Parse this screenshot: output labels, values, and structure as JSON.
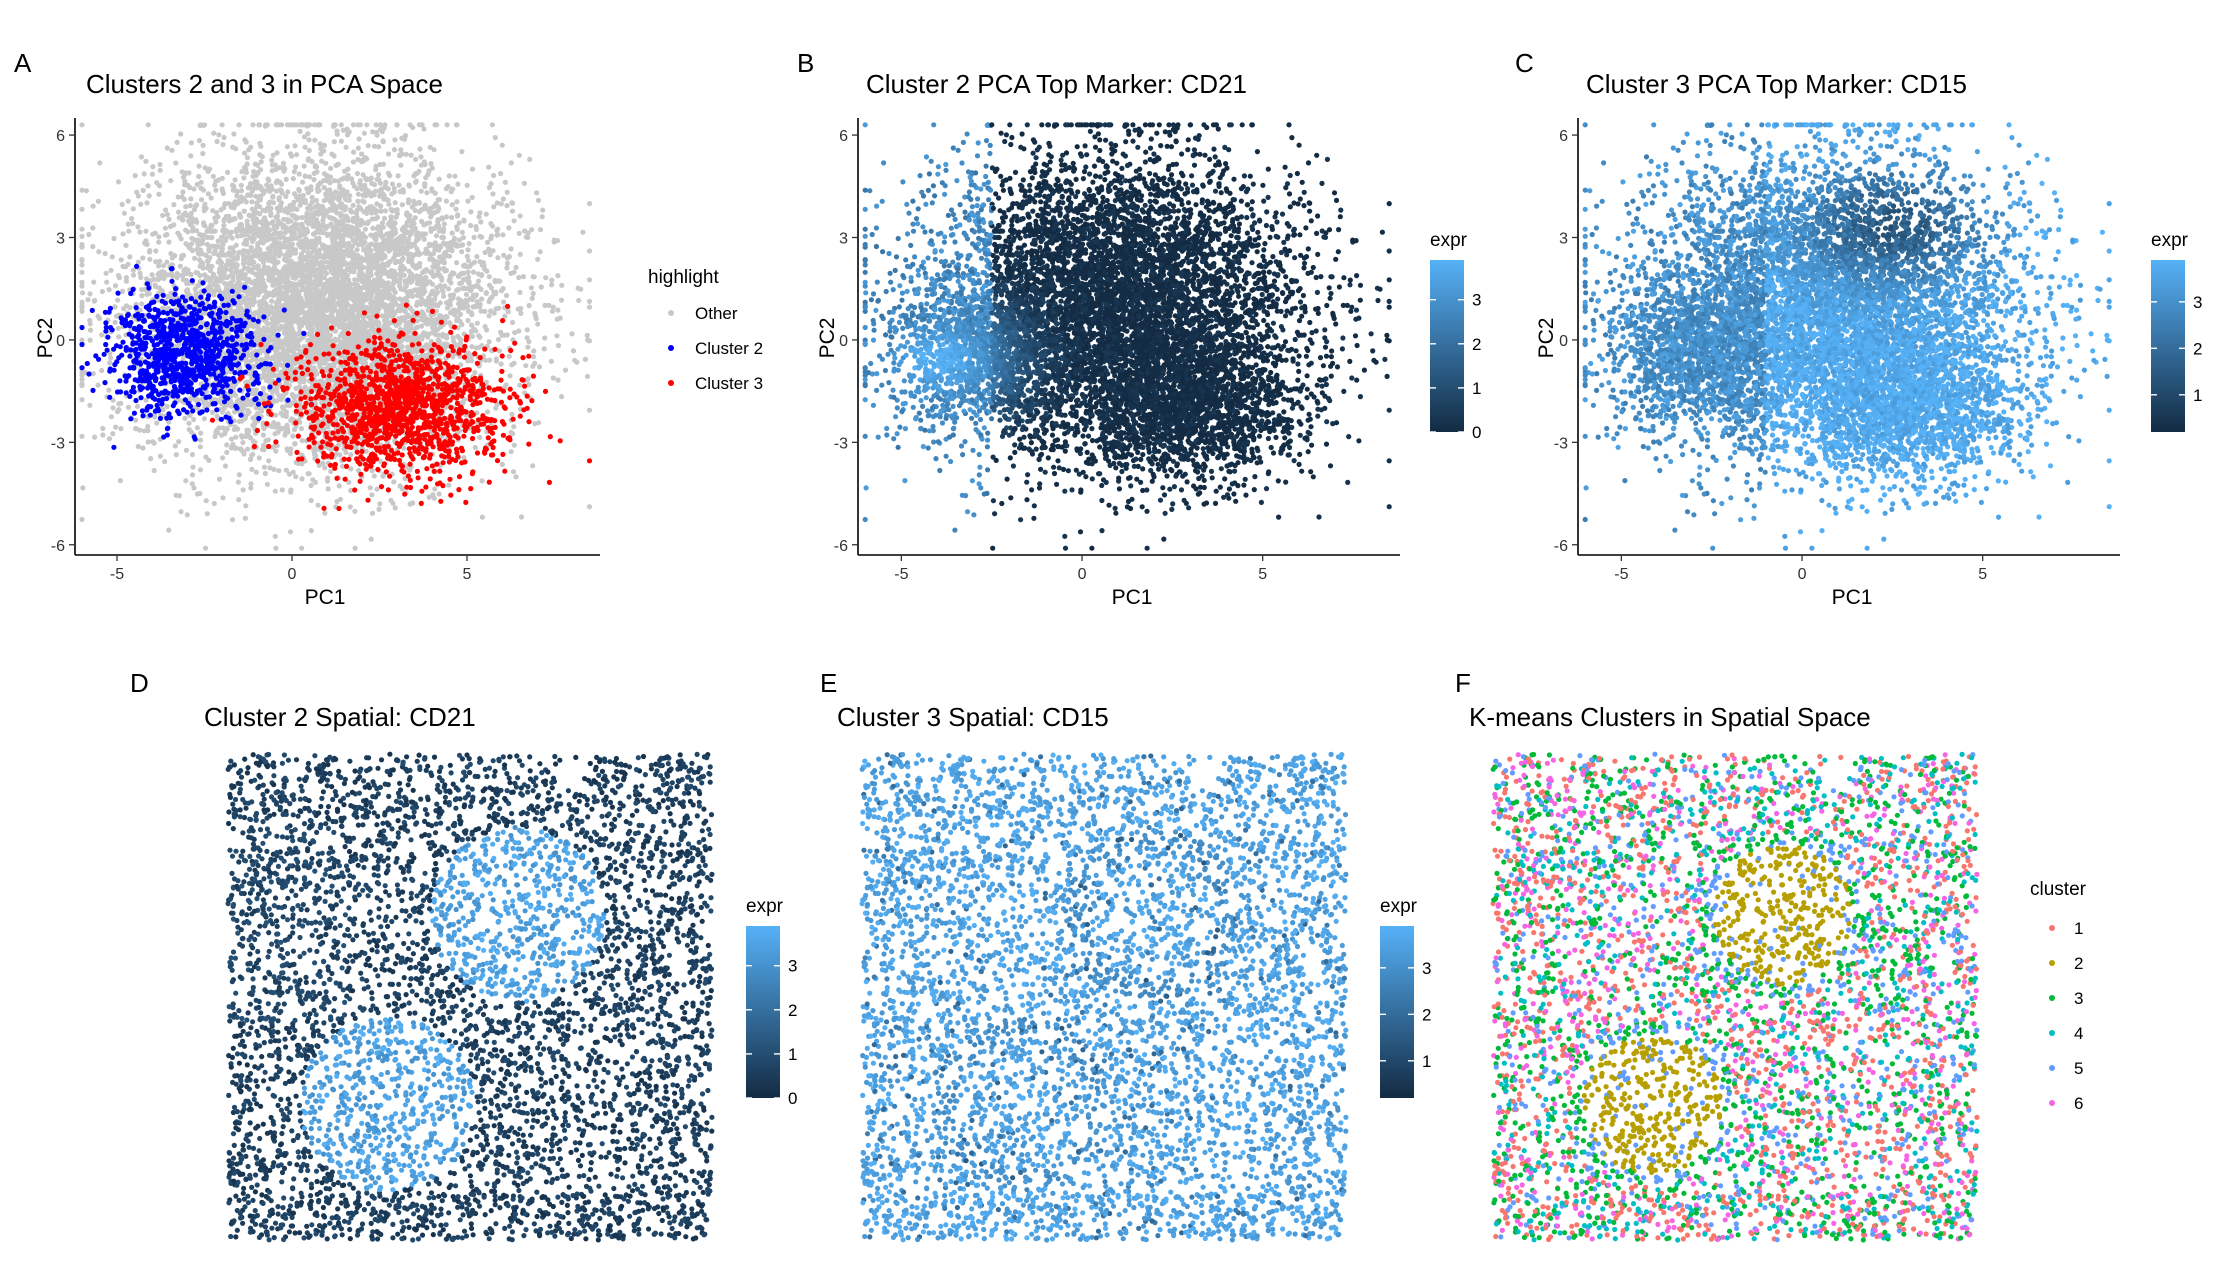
{
  "chart_data": [
    {
      "panel": "A",
      "type": "scatter",
      "title": "Clusters 2 and 3 in PCA Space",
      "xlabel": "PC1",
      "ylabel": "PC2",
      "xlim": [
        -6.2,
        8.8
      ],
      "ylim": [
        -6.3,
        6.5
      ],
      "xticks": [
        -5,
        0,
        5
      ],
      "yticks": [
        -6,
        -3,
        0,
        3,
        6
      ],
      "grid": false,
      "legend": {
        "title": "highlight",
        "position": "right",
        "entries": [
          {
            "label": "Other",
            "color": "#C8C8C8"
          },
          {
            "label": "Cluster 2",
            "color": "#0000FF"
          },
          {
            "label": "Cluster 3",
            "color": "#FF0000"
          }
        ]
      },
      "groups": [
        {
          "name": "Other",
          "color": "#C8C8C8",
          "n": 6800,
          "center": [
            0.8,
            0.9
          ],
          "spread": [
            2.6,
            2.2
          ]
        },
        {
          "name": "Cluster 2",
          "color": "#0000FF",
          "n": 900,
          "center": [
            -3.1,
            -0.4
          ],
          "spread": [
            1.1,
            0.85
          ]
        },
        {
          "name": "Cluster 3",
          "color": "#FF0000",
          "n": 1300,
          "center": [
            3.0,
            -2.0
          ],
          "spread": [
            1.5,
            1.0
          ]
        }
      ]
    },
    {
      "panel": "B",
      "type": "scatter",
      "title": "Cluster 2 PCA Top Marker: CD21",
      "xlabel": "PC1",
      "ylabel": "PC2",
      "xlim": [
        -6.2,
        8.8
      ],
      "ylim": [
        -6.3,
        6.5
      ],
      "xticks": [
        -5,
        0,
        5
      ],
      "yticks": [
        -6,
        -3,
        0,
        3,
        6
      ],
      "grid": false,
      "colorbar": {
        "title": "expr",
        "min": 0,
        "max": 3.9,
        "ticks": [
          0,
          1,
          2,
          3
        ],
        "low": "#132B43",
        "high": "#56B1F7"
      },
      "high_expr_center": [
        -4.0,
        -0.6
      ]
    },
    {
      "panel": "C",
      "type": "scatter",
      "title": "Cluster 3 PCA Top Marker: CD15",
      "xlabel": "PC1",
      "ylabel": "PC2",
      "xlim": [
        -6.2,
        8.8
      ],
      "ylim": [
        -6.3,
        6.5
      ],
      "xticks": [
        -5,
        0,
        5
      ],
      "yticks": [
        -6,
        -3,
        0,
        3,
        6
      ],
      "grid": false,
      "colorbar": {
        "title": "expr",
        "min": 0.2,
        "max": 3.9,
        "ticks": [
          1,
          2,
          3
        ],
        "low": "#132B43",
        "high": "#56B1F7"
      },
      "low_expr_center": [
        2.5,
        3.4
      ]
    },
    {
      "panel": "D",
      "type": "scatter",
      "title": "Cluster 2 Spatial: CD21",
      "axes": "none",
      "colorbar": {
        "title": "expr",
        "min": 0,
        "max": 3.9,
        "ticks": [
          0,
          1,
          2,
          3
        ],
        "low": "#132B43",
        "high": "#56B1F7"
      },
      "high_expr_regions": [
        {
          "center": [
            0.6,
            0.67
          ],
          "radius": 0.18
        },
        {
          "center": [
            0.33,
            0.28
          ],
          "radius": 0.18
        }
      ]
    },
    {
      "panel": "E",
      "type": "scatter",
      "title": "Cluster 3 Spatial: CD15",
      "axes": "none",
      "colorbar": {
        "title": "expr",
        "min": 0.2,
        "max": 3.9,
        "ticks": [
          1,
          2,
          3
        ],
        "low": "#132B43",
        "high": "#56B1F7"
      }
    },
    {
      "panel": "F",
      "type": "scatter",
      "title": "K-means Clusters in Spatial Space",
      "axes": "none",
      "legend": {
        "title": "cluster",
        "position": "right",
        "entries": [
          {
            "label": "1",
            "color": "#F8766D"
          },
          {
            "label": "2",
            "color": "#B79F00"
          },
          {
            "label": "3",
            "color": "#00BA38"
          },
          {
            "label": "4",
            "color": "#00BFC4"
          },
          {
            "label": "5",
            "color": "#619CFF"
          },
          {
            "label": "6",
            "color": "#F564E3"
          }
        ]
      },
      "cluster2_regions": [
        {
          "center": [
            0.6,
            0.67
          ],
          "radius": 0.17
        },
        {
          "center": [
            0.33,
            0.28
          ],
          "radius": 0.17
        }
      ]
    }
  ],
  "panel_tags": [
    "A",
    "B",
    "C",
    "D",
    "E",
    "F"
  ]
}
